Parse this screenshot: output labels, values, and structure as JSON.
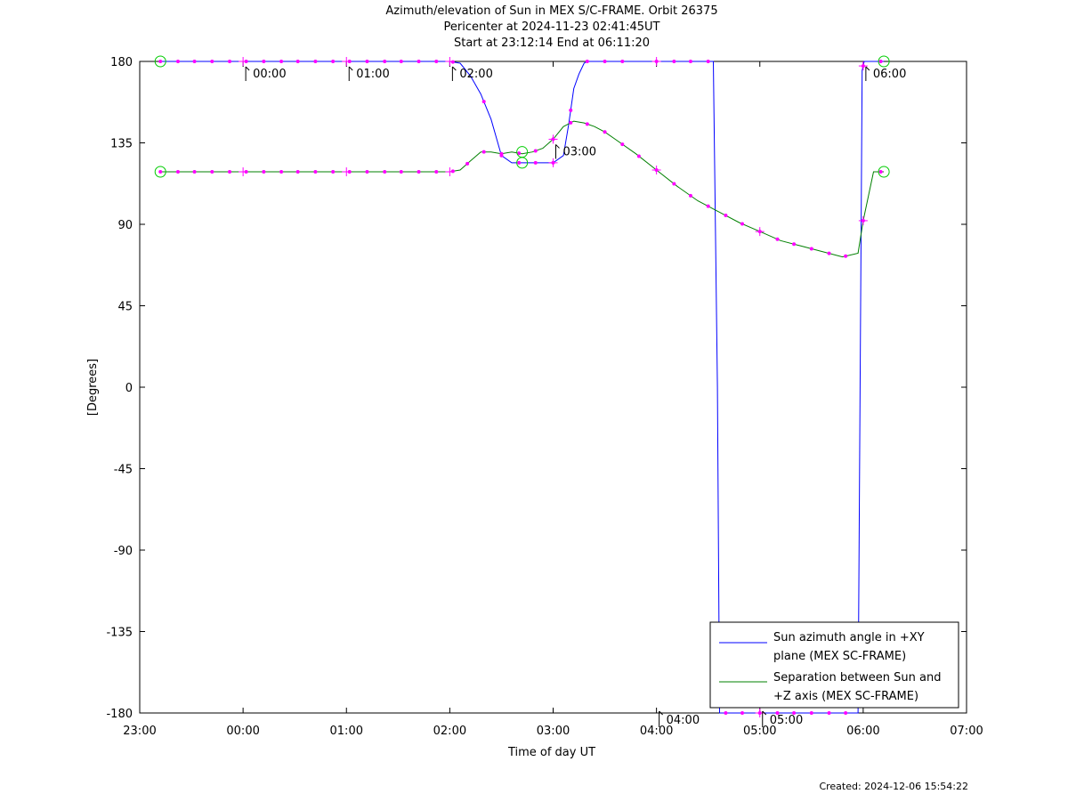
{
  "header": {
    "title": "Azimuth/elevation of Sun in MEX S/C-FRAME.  Orbit 26375",
    "line2": "Pericenter at 2024-11-23 02:41:45UT",
    "line3": "Start at 23:12:14 End at 06:11:20"
  },
  "footer": {
    "created": "Created: 2024-12-06 15:54:22"
  },
  "chart_data": {
    "type": "line",
    "xlabel": "Time of day UT",
    "ylabel": "[Degrees]",
    "x_unit": "hours since 23:00 UT",
    "xlim": [
      0,
      8
    ],
    "ylim": [
      -180,
      180
    ],
    "x_ticks": [
      {
        "v": 0,
        "label": "23:00"
      },
      {
        "v": 1,
        "label": "00:00"
      },
      {
        "v": 2,
        "label": "01:00"
      },
      {
        "v": 3,
        "label": "02:00"
      },
      {
        "v": 4,
        "label": "03:00"
      },
      {
        "v": 5,
        "label": "04:00"
      },
      {
        "v": 6,
        "label": "05:00"
      },
      {
        "v": 7,
        "label": "06:00"
      },
      {
        "v": 8,
        "label": "07:00"
      }
    ],
    "y_ticks": [
      {
        "v": 180,
        "label": "180"
      },
      {
        "v": 135,
        "label": "135"
      },
      {
        "v": 90,
        "label": "90"
      },
      {
        "v": 45,
        "label": "45"
      },
      {
        "v": 0,
        "label": "0"
      },
      {
        "v": -45,
        "label": "-45"
      },
      {
        "v": -90,
        "label": "-90"
      },
      {
        "v": -135,
        "label": "-135"
      },
      {
        "v": -180,
        "label": "-180"
      }
    ],
    "legend_position": "bottom-right",
    "series": [
      {
        "name": "Sun azimuth angle in +XY plane (MEX SC-FRAME)",
        "legend_lines": [
          "Sun azimuth angle in +XY",
          "plane (MEX SC-FRAME)"
        ],
        "color": "#0000ff",
        "x": [
          0.2,
          3.0,
          3.1,
          3.2,
          3.3,
          3.4,
          3.5,
          3.6,
          3.7,
          4.0,
          4.1,
          4.15,
          4.2,
          4.25,
          4.3,
          4.33,
          4.4,
          4.6,
          4.8,
          5.0,
          5.2,
          5.55,
          5.59,
          5.61,
          5.65,
          6.0,
          6.5,
          6.95,
          6.97,
          6.99,
          7.01,
          7.05,
          7.2
        ],
        "y": [
          180,
          180,
          179,
          172,
          162,
          148,
          128,
          124,
          124,
          124,
          128,
          145,
          165,
          173,
          179,
          180,
          180,
          180,
          180,
          180,
          180,
          180,
          0,
          -180,
          -180,
          -180,
          -180,
          -180,
          0,
          175,
          180,
          180,
          180
        ]
      },
      {
        "name": "Separation between Sun and +Z axis (MEX SC-FRAME)",
        "legend_lines": [
          "Separation between Sun and",
          "+Z axis (MEX SC-FRAME)"
        ],
        "color": "#008000",
        "x": [
          0.2,
          1.0,
          2.0,
          3.0,
          3.1,
          3.2,
          3.3,
          3.4,
          3.5,
          3.6,
          3.7,
          3.8,
          3.9,
          4.0,
          4.1,
          4.2,
          4.3,
          4.4,
          4.5,
          4.6,
          4.8,
          5.0,
          5.2,
          5.4,
          5.6,
          5.8,
          6.0,
          6.2,
          6.4,
          6.6,
          6.8,
          6.95,
          7.0,
          7.1,
          7.2
        ],
        "y": [
          119,
          119,
          119,
          119,
          120,
          125,
          130,
          130,
          129,
          130,
          129,
          130,
          132,
          137,
          144,
          147,
          146,
          144,
          141,
          137,
          129,
          120,
          111,
          103,
          97,
          91,
          86,
          81,
          78,
          75,
          72,
          74,
          92,
          119,
          119
        ]
      }
    ],
    "markers": {
      "color": "#ff00ff",
      "azimuth_dots_x": [
        0.2,
        0.37,
        0.53,
        0.7,
        0.87,
        1.03,
        1.2,
        1.37,
        1.53,
        1.7,
        1.87,
        2.03,
        2.2,
        2.37,
        2.53,
        2.7,
        2.87,
        3.03,
        3.33,
        3.5,
        3.67,
        3.83,
        4.0,
        4.17,
        4.33,
        4.5,
        4.67,
        5.0,
        5.17,
        5.33,
        5.5,
        5.67,
        5.83,
        6.0,
        6.17,
        6.33,
        6.5,
        6.67,
        6.83,
        7.0,
        7.17
      ],
      "separation_dots_x": [
        0.2,
        0.37,
        0.53,
        0.7,
        0.87,
        1.03,
        1.2,
        1.37,
        1.53,
        1.7,
        1.87,
        2.03,
        2.2,
        2.37,
        2.53,
        2.7,
        2.87,
        3.03,
        3.17,
        3.33,
        3.5,
        3.67,
        3.83,
        4.0,
        4.17,
        4.33,
        4.5,
        4.67,
        4.83,
        5.0,
        5.17,
        5.33,
        5.5,
        5.67,
        5.83,
        6.0,
        6.17,
        6.33,
        6.5,
        6.67,
        6.83,
        7.0,
        7.17
      ],
      "hour_ticks_x": [
        1,
        2,
        3,
        4,
        5,
        6,
        7
      ],
      "circles": [
        {
          "x": 0.2,
          "y": 180
        },
        {
          "x": 0.2,
          "y": 119
        },
        {
          "x": 3.7,
          "y": 130
        },
        {
          "x": 3.7,
          "y": 124
        },
        {
          "x": 7.2,
          "y": 180
        },
        {
          "x": 7.2,
          "y": 119
        }
      ]
    },
    "time_annotations": [
      {
        "x": 1,
        "y": 180,
        "label": "00:00"
      },
      {
        "x": 2,
        "y": 180,
        "label": "01:00"
      },
      {
        "x": 3,
        "y": 180,
        "label": "02:00"
      },
      {
        "x": 4,
        "y": 137,
        "label": "03:00"
      },
      {
        "x": 5,
        "y": -180,
        "label": "04:00"
      },
      {
        "x": 6,
        "y": -180,
        "label": "05:00"
      },
      {
        "x": 7,
        "y": 180,
        "label": "06:00"
      }
    ]
  }
}
